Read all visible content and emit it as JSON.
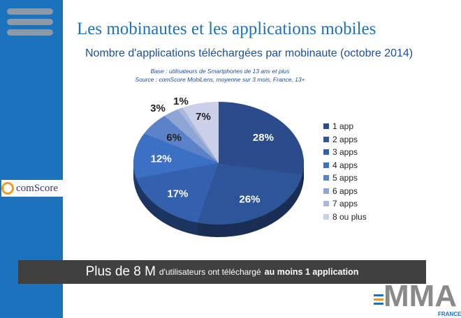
{
  "title": "Les mobinautes et les applications mobiles",
  "banner": {
    "part1": "Plus de 8 M",
    "part2": "d'utilisateurs ont téléchargé",
    "part3": "au moins 1 application"
  },
  "logos": {
    "comscore": "comScore",
    "mma": "MMA",
    "mma_sub": "FRANCE"
  },
  "chart_data": {
    "type": "pie",
    "title": "Nombre d'applications téléchargées par mobinaute (octobre 2014)",
    "notes": [
      "Base : utilisateurs de Smartphones de 13 ans et plus",
      "Source : comScore MobiLens, moyenne sur 3 mois, France, 13+"
    ],
    "categories": [
      "1 app",
      "2 apps",
      "3 apps",
      "4 apps",
      "5 apps",
      "6 apps",
      "7 apps",
      "8 ou plus"
    ],
    "values": [
      28,
      26,
      17,
      12,
      6,
      3,
      1,
      7
    ],
    "labels": [
      "28%",
      "26%",
      "17%",
      "12%",
      "6%",
      "3%",
      "1%",
      "7%"
    ],
    "colors": [
      "#2b4b8a",
      "#2f5599",
      "#3461ae",
      "#3c70c4",
      "#5b82c8",
      "#8ea6d6",
      "#a9b8df",
      "#c9d0e8"
    ],
    "legend_position": "right"
  }
}
